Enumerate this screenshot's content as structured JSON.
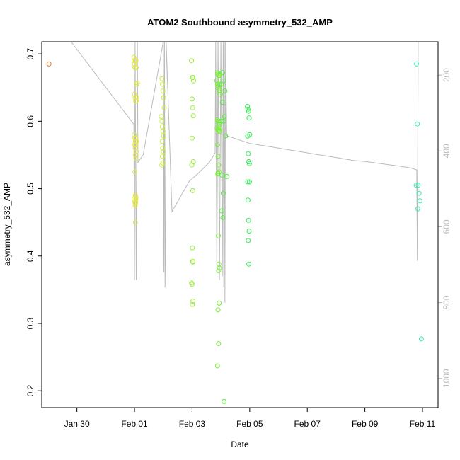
{
  "chart_data": {
    "type": "scatter",
    "title": "ATOM2 Southbound asymmetry_532_AMP",
    "xlabel": "Date",
    "ylabel": "asymmetry_532_AMP",
    "x_ticks": [
      "Jan 30",
      "Feb 01",
      "Feb 03",
      "Feb 05",
      "Feb 07",
      "Feb 09",
      "Feb 11"
    ],
    "x_tick_days": [
      0,
      2,
      4,
      6,
      8,
      10,
      12
    ],
    "xlim_days": [
      -1.22,
      12.54
    ],
    "y_ticks": [
      0.2,
      0.3,
      0.4,
      0.5,
      0.6,
      0.7
    ],
    "ylim": [
      0.175,
      0.718
    ],
    "y2_ticks": [
      200,
      400,
      600,
      800,
      1000
    ],
    "y2lim": [
      1077,
      112
    ],
    "grid": false,
    "series": [
      {
        "color": "#e07f2a",
        "x": [
          -0.97
        ],
        "y": [
          0.685
        ]
      },
      {
        "color": "#e3e83e",
        "x": [
          1.98,
          1.99,
          2.0,
          2.01,
          2.02,
          2.03,
          2.05,
          2.06,
          2.08,
          2.1,
          2.0,
          2.02,
          2.04,
          2.06,
          2.08,
          1.99,
          2.01,
          2.03,
          2.05,
          2.07,
          2.0,
          2.02,
          2.04,
          2.06,
          2.03,
          2.05,
          2.01,
          2.03,
          2.05,
          2.04,
          2.02,
          1.99,
          2.01,
          2.03,
          2.05,
          2.03
        ],
        "y": [
          0.695,
          0.69,
          0.685,
          0.68,
          0.68,
          0.69,
          0.69,
          0.68,
          0.655,
          0.657,
          0.64,
          0.635,
          0.63,
          0.63,
          0.635,
          0.58,
          0.575,
          0.57,
          0.575,
          0.57,
          0.565,
          0.56,
          0.565,
          0.555,
          0.55,
          0.545,
          0.525,
          0.49,
          0.487,
          0.48,
          0.475,
          0.485,
          0.48,
          0.478,
          0.485,
          0.45
        ]
      },
      {
        "color": "#c8ee3c",
        "x": [
          2.95,
          2.97,
          2.99,
          3.01,
          3.03,
          2.93,
          2.95,
          2.97,
          2.99,
          3.01,
          2.96,
          2.98,
          3.0,
          2.97,
          2.99,
          2.95
        ],
        "y": [
          0.663,
          0.655,
          0.645,
          0.635,
          0.62,
          0.607,
          0.6,
          0.592,
          0.585,
          0.578,
          0.57,
          0.56,
          0.555,
          0.548,
          0.538,
          0.535
        ]
      },
      {
        "color": "#9aee3a",
        "x": [
          3.98,
          4.01,
          4.03,
          4.05,
          4.0,
          4.02,
          4.04,
          4.0,
          4.04,
          3.99,
          4.02,
          4.01,
          4.02,
          4.0,
          4.03,
          4.01,
          4.03,
          3.98
        ],
        "y": [
          0.69,
          0.665,
          0.665,
          0.66,
          0.633,
          0.62,
          0.608,
          0.575,
          0.54,
          0.535,
          0.497,
          0.412,
          0.392,
          0.358,
          0.333,
          0.328,
          0.391,
          0.36
        ]
      },
      {
        "color": "#7cee3a",
        "x": [
          4.86,
          4.88,
          4.9,
          4.92,
          4.94,
          4.96,
          4.88,
          4.9,
          4.92,
          4.94,
          4.96,
          4.98,
          4.88,
          4.9,
          4.92,
          4.94,
          4.96,
          4.87,
          4.89,
          4.91,
          4.93,
          4.95,
          4.88,
          4.9,
          4.92,
          4.94,
          4.89,
          4.91,
          4.93,
          4.95,
          4.92,
          4.94,
          4.9,
          4.92,
          4.88,
          4.9
        ],
        "y": [
          0.66,
          0.672,
          0.67,
          0.668,
          0.668,
          0.67,
          0.655,
          0.652,
          0.648,
          0.645,
          0.655,
          0.64,
          0.602,
          0.6,
          0.598,
          0.595,
          0.59,
          0.59,
          0.588,
          0.586,
          0.587,
          0.585,
          0.565,
          0.548,
          0.535,
          0.525,
          0.522,
          0.43,
          0.388,
          0.382,
          0.378,
          0.33,
          0.32,
          0.27,
          0.237,
          0.523
        ]
      },
      {
        "color": "#55ee3c",
        "x": [
          5.02,
          5.06,
          5.1,
          5.14,
          5.05,
          5.09,
          5.12,
          5.0,
          5.16,
          5.04,
          5.08,
          5.03,
          5.07,
          5.11,
          5.21
        ],
        "y": [
          0.655,
          0.672,
          0.66,
          0.645,
          0.628,
          0.6,
          0.607,
          0.6,
          0.578,
          0.52,
          0.493,
          0.467,
          0.457,
          0.184,
          0.518
        ]
      },
      {
        "color": "#33ee55",
        "x": [
          5.92,
          5.94,
          5.96,
          5.98,
          6.0,
          5.93,
          5.95,
          5.97,
          5.99,
          5.94,
          5.96,
          5.98,
          5.95,
          5.97,
          5.99,
          5.93
        ],
        "y": [
          0.622,
          0.618,
          0.615,
          0.605,
          0.58,
          0.578,
          0.552,
          0.54,
          0.51,
          0.483,
          0.453,
          0.437,
          0.423,
          0.388,
          0.537,
          0.51
        ]
      },
      {
        "color": "#33eeaa",
        "x": [
          11.79,
          11.82,
          11.85,
          11.88,
          11.91,
          11.84,
          11.96,
          11.78
        ],
        "y": [
          0.685,
          0.596,
          0.505,
          0.493,
          0.482,
          0.47,
          0.277,
          0.505
        ]
      }
    ]
  }
}
